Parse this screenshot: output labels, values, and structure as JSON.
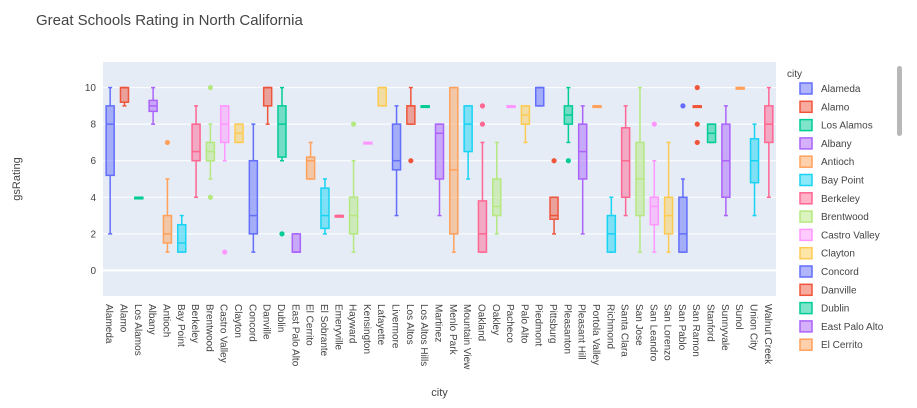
{
  "chart_data": {
    "type": "box",
    "title": "Great Schools Rating in North California",
    "xlabel": "city",
    "ylabel": "gsRating",
    "ylim": [
      -1.4,
      11.4
    ],
    "yticks": [
      0,
      2,
      4,
      6,
      8,
      10
    ],
    "grid": true,
    "legend": {
      "title": "city",
      "placement": "right"
    },
    "colors": [
      "#636efa",
      "#EF553B",
      "#00cc96",
      "#ab63fa",
      "#FFA15A",
      "#19d3f3",
      "#FF6692",
      "#B6E880",
      "#FF97FF",
      "#FECB52"
    ],
    "categories": [
      "Alameda",
      "Alamo",
      "Los Alamos",
      "Albany",
      "Antioch",
      "Bay Point",
      "Berkeley",
      "Brentwood",
      "Castro Valley",
      "Clayton",
      "Concord",
      "Danville",
      "Dublin",
      "East Palo Alto",
      "El Cerrito",
      "El Sobrante",
      "Emeryville",
      "Hayward",
      "Kensington",
      "Lafayette",
      "Livermore",
      "Los Altos",
      "Los Altos Hills",
      "Martinez",
      "Menlo Park",
      "Mountain View",
      "Oakland",
      "Oakley",
      "Pacheco",
      "Palo Alto",
      "Piedmont",
      "Pittsburg",
      "Pleasanton",
      "Pleasant Hill",
      "Portola Valley",
      "Richmond",
      "Santa Clara",
      "San Jose",
      "San Leandro",
      "San Lorenzo",
      "San Pablo",
      "San Ramon",
      "Stanford",
      "Sunnyvale",
      "Sunol",
      "Union City",
      "Walnut Creek"
    ],
    "series": [
      {
        "name": "Alameda",
        "min": 2,
        "q1": 5.2,
        "median": 8,
        "q3": 9,
        "max": 10,
        "outliers": []
      },
      {
        "name": "Alamo",
        "min": 9,
        "q1": 9.2,
        "median": 10,
        "q3": 10,
        "max": 10,
        "outliers": []
      },
      {
        "name": "Los Alamos",
        "min": 4,
        "q1": 4,
        "median": 4,
        "q3": 4,
        "max": 4,
        "outliers": []
      },
      {
        "name": "Albany",
        "min": 8,
        "q1": 8.7,
        "median": 9,
        "q3": 9.3,
        "max": 10,
        "outliers": []
      },
      {
        "name": "Antioch",
        "min": 1,
        "q1": 1.5,
        "median": 2,
        "q3": 3,
        "max": 5,
        "outliers": [
          7
        ]
      },
      {
        "name": "Bay Point",
        "min": 1,
        "q1": 1,
        "median": 1.5,
        "q3": 2.5,
        "max": 3,
        "outliers": []
      },
      {
        "name": "Berkeley",
        "min": 4,
        "q1": 6,
        "median": 6.5,
        "q3": 8,
        "max": 9,
        "outliers": []
      },
      {
        "name": "Brentwood",
        "min": 5,
        "q1": 6,
        "median": 6.5,
        "q3": 7,
        "max": 8,
        "outliers": [
          4,
          10
        ]
      },
      {
        "name": "Castro Valley",
        "min": 6,
        "q1": 7,
        "median": 8,
        "q3": 9,
        "max": 9,
        "outliers": [
          1
        ]
      },
      {
        "name": "Clayton",
        "min": 7,
        "q1": 7,
        "median": 7.5,
        "q3": 8,
        "max": 8,
        "outliers": []
      },
      {
        "name": "Concord",
        "min": 1,
        "q1": 2,
        "median": 3,
        "q3": 6,
        "max": 8,
        "outliers": []
      },
      {
        "name": "Danville",
        "min": 8,
        "q1": 9,
        "median": 10,
        "q3": 10,
        "max": 10,
        "outliers": []
      },
      {
        "name": "Dublin",
        "min": 6,
        "q1": 6.2,
        "median": 8,
        "q3": 9,
        "max": 10,
        "outliers": [
          2
        ]
      },
      {
        "name": "East Palo Alto",
        "min": 1,
        "q1": 1,
        "median": 1,
        "q3": 2,
        "max": 2,
        "outliers": []
      },
      {
        "name": "El Cerrito",
        "min": 5,
        "q1": 5,
        "median": 6,
        "q3": 6.2,
        "max": 7,
        "outliers": []
      },
      {
        "name": "El Sobrante",
        "min": 2,
        "q1": 2.3,
        "median": 3,
        "q3": 4.5,
        "max": 5,
        "outliers": []
      },
      {
        "name": "Emeryville",
        "min": 3,
        "q1": 3,
        "median": 3,
        "q3": 3,
        "max": 3,
        "outliers": []
      },
      {
        "name": "Hayward",
        "min": 1,
        "q1": 2,
        "median": 3,
        "q3": 4,
        "max": 6,
        "outliers": [
          8
        ]
      },
      {
        "name": "Kensington",
        "min": 7,
        "q1": 7,
        "median": 7,
        "q3": 7,
        "max": 7,
        "outliers": []
      },
      {
        "name": "Lafayette",
        "min": 9,
        "q1": 9,
        "median": 10,
        "q3": 10,
        "max": 10,
        "outliers": []
      },
      {
        "name": "Livermore",
        "min": 3,
        "q1": 5.5,
        "median": 6,
        "q3": 8,
        "max": 9,
        "outliers": []
      },
      {
        "name": "Los Altos",
        "min": 8,
        "q1": 8,
        "median": 9,
        "q3": 9,
        "max": 10,
        "outliers": [
          6
        ]
      },
      {
        "name": "Los Altos Hills",
        "min": 9,
        "q1": 9,
        "median": 9,
        "q3": 9,
        "max": 9,
        "outliers": []
      },
      {
        "name": "Martinez",
        "min": 3,
        "q1": 5,
        "median": 7.5,
        "q3": 8,
        "max": 8,
        "outliers": []
      },
      {
        "name": "Menlo Park",
        "min": 1,
        "q1": 2,
        "median": 5.5,
        "q3": 10,
        "max": 10,
        "outliers": []
      },
      {
        "name": "Mountain View",
        "min": 5,
        "q1": 6.5,
        "median": 8,
        "q3": 9,
        "max": 9,
        "outliers": []
      },
      {
        "name": "Oakland",
        "min": 1,
        "q1": 1,
        "median": 2,
        "q3": 3.8,
        "max": 7,
        "outliers": [
          8,
          9
        ]
      },
      {
        "name": "Oakley",
        "min": 2,
        "q1": 3,
        "median": 3.5,
        "q3": 5,
        "max": 7,
        "outliers": []
      },
      {
        "name": "Pacheco",
        "min": 9,
        "q1": 9,
        "median": 9,
        "q3": 9,
        "max": 9,
        "outliers": []
      },
      {
        "name": "Palo Alto",
        "min": 7,
        "q1": 8,
        "median": 8.5,
        "q3": 9,
        "max": 9,
        "outliers": []
      },
      {
        "name": "Piedmont",
        "min": 9,
        "q1": 9,
        "median": 10,
        "q3": 10,
        "max": 10,
        "outliers": []
      },
      {
        "name": "Pittsburg",
        "min": 2,
        "q1": 2.8,
        "median": 3,
        "q3": 4,
        "max": 4,
        "outliers": [
          6
        ]
      },
      {
        "name": "Pleasanton",
        "min": 7,
        "q1": 8,
        "median": 8.5,
        "q3": 9,
        "max": 10,
        "outliers": [
          6
        ]
      },
      {
        "name": "Pleasant Hill",
        "min": 2,
        "q1": 5,
        "median": 6.5,
        "q3": 8,
        "max": 9,
        "outliers": []
      },
      {
        "name": "Portola Valley",
        "min": 9,
        "q1": 9,
        "median": 9,
        "q3": 9,
        "max": 9,
        "outliers": []
      },
      {
        "name": "Richmond",
        "min": 1,
        "q1": 1,
        "median": 2,
        "q3": 3,
        "max": 4,
        "outliers": []
      },
      {
        "name": "Santa Clara",
        "min": 3,
        "q1": 4,
        "median": 6,
        "q3": 7.8,
        "max": 9,
        "outliers": []
      },
      {
        "name": "San Jose",
        "min": 1,
        "q1": 3,
        "median": 5,
        "q3": 7,
        "max": 10,
        "outliers": []
      },
      {
        "name": "San Leandro",
        "min": 1,
        "q1": 2.5,
        "median": 3.5,
        "q3": 4,
        "max": 6,
        "outliers": [
          8
        ]
      },
      {
        "name": "San Lorenzo",
        "min": 1,
        "q1": 2,
        "median": 3,
        "q3": 4,
        "max": 7,
        "outliers": []
      },
      {
        "name": "San Pablo",
        "min": 1,
        "q1": 1,
        "median": 2,
        "q3": 4,
        "max": 5,
        "outliers": [
          9
        ]
      },
      {
        "name": "San Ramon",
        "min": 9,
        "q1": 9,
        "median": 9,
        "q3": 9,
        "max": 9,
        "outliers": [
          7,
          8,
          10
        ]
      },
      {
        "name": "Stanford",
        "min": 7,
        "q1": 7,
        "median": 7.5,
        "q3": 8,
        "max": 8,
        "outliers": []
      },
      {
        "name": "Sunnyvale",
        "min": 3,
        "q1": 4,
        "median": 6,
        "q3": 8,
        "max": 9,
        "outliers": []
      },
      {
        "name": "Sunol",
        "min": 10,
        "q1": 10,
        "median": 10,
        "q3": 10,
        "max": 10,
        "outliers": []
      },
      {
        "name": "Union City",
        "min": 3,
        "q1": 4.8,
        "median": 6,
        "q3": 7.2,
        "max": 8,
        "outliers": []
      },
      {
        "name": "Walnut Creek",
        "min": 4,
        "q1": 7,
        "median": 8,
        "q3": 9,
        "max": 10,
        "outliers": []
      }
    ]
  }
}
